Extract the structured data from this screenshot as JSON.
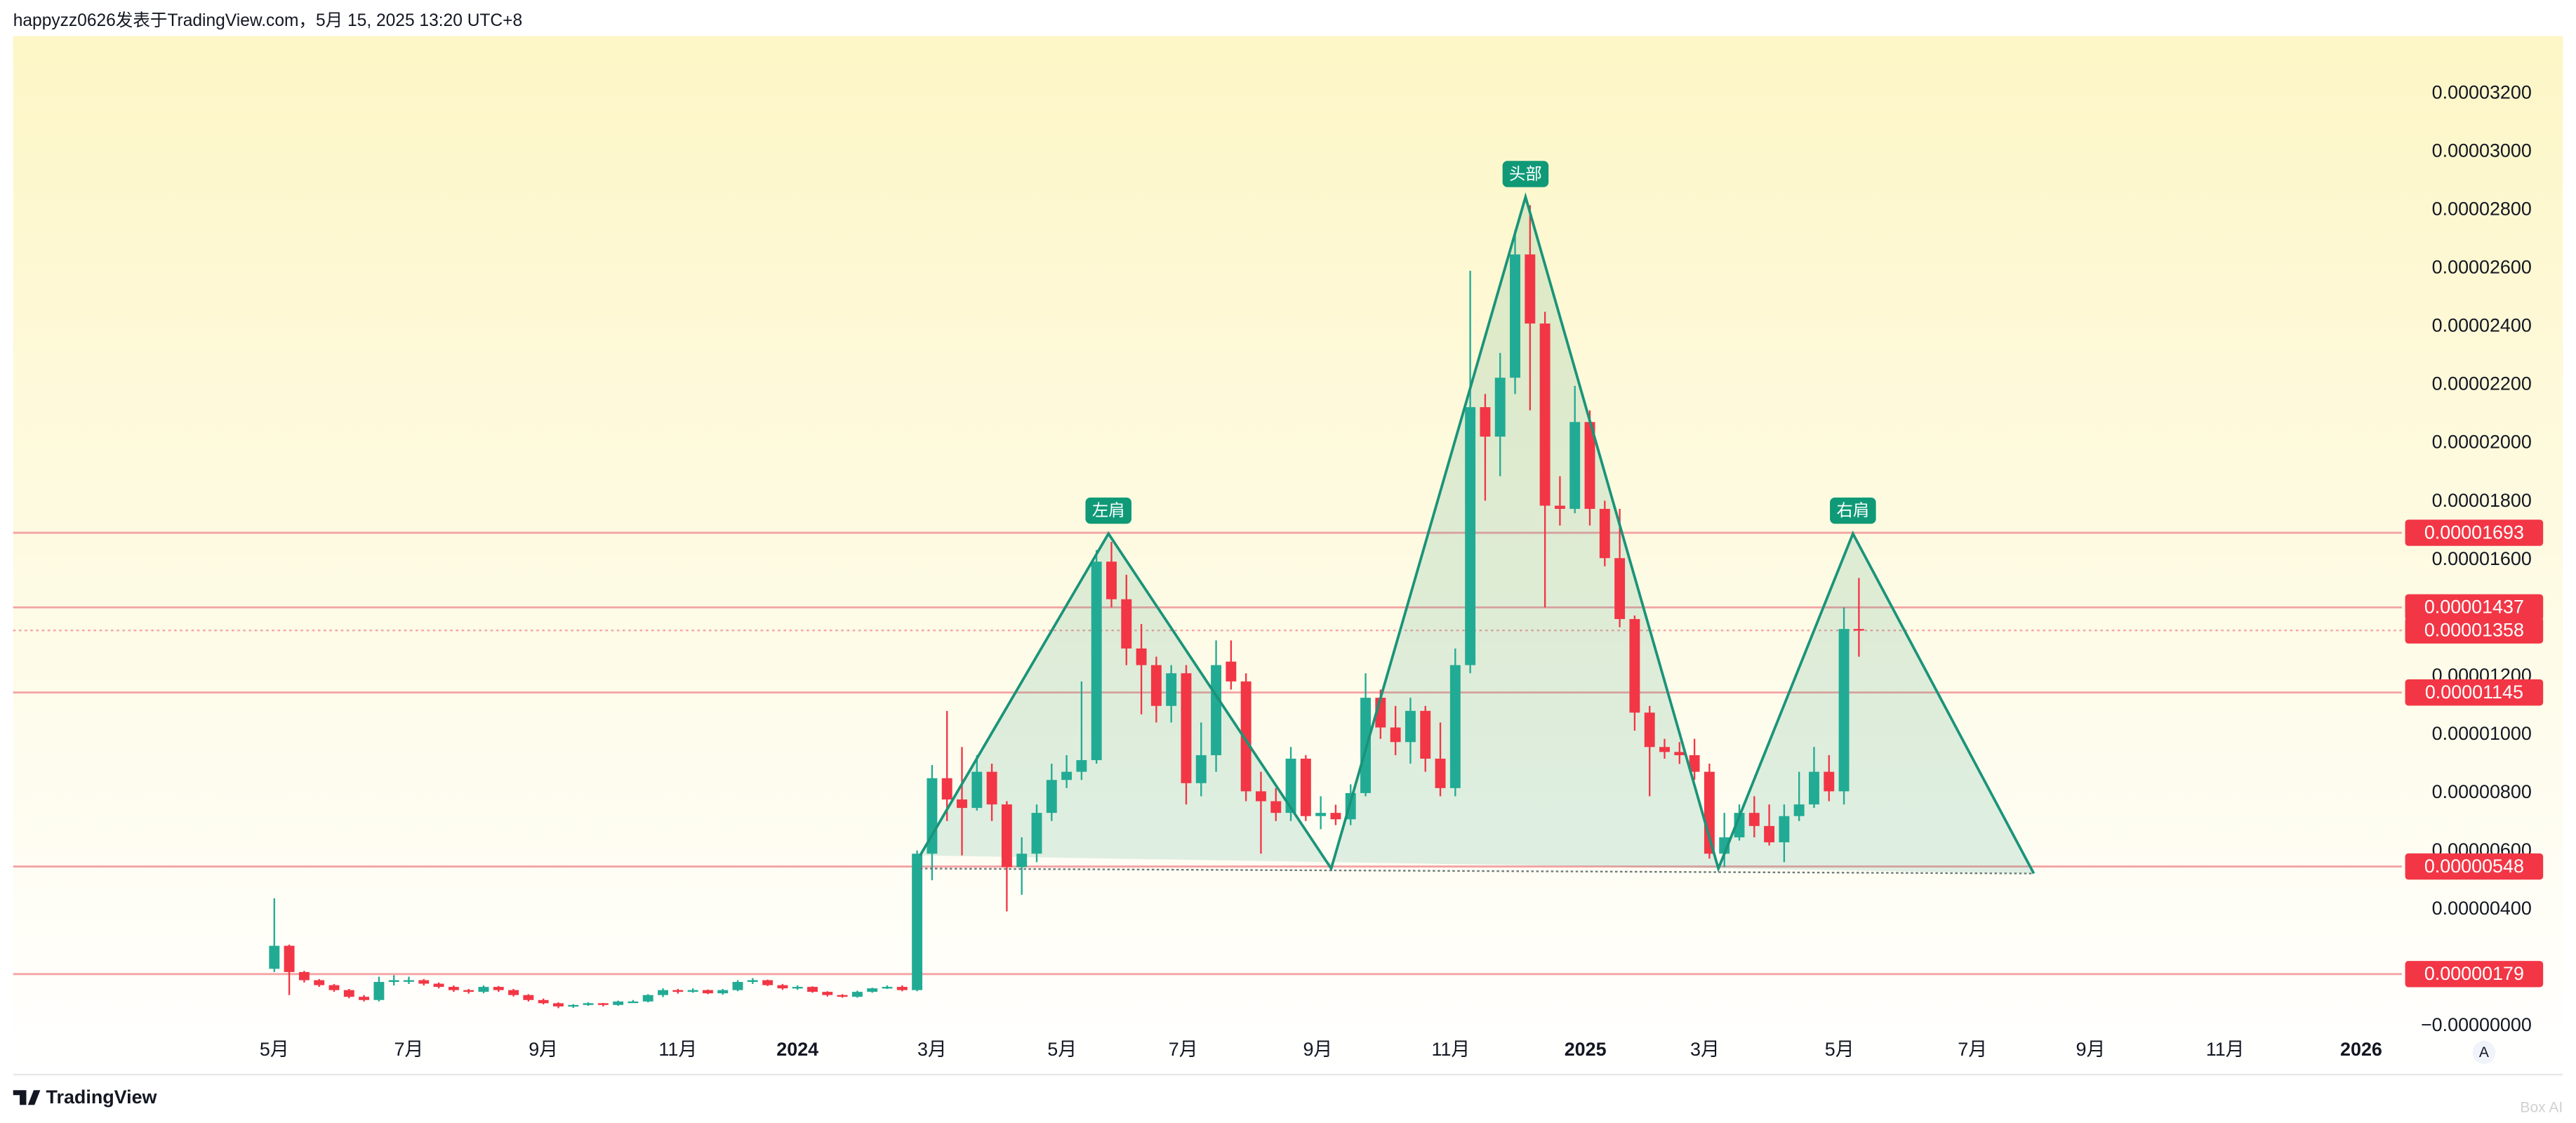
{
  "header": {
    "author_line": "happyzz0626发表于TradingView.com，5月 15, 2025 13:20 UTC+8"
  },
  "footer": {
    "logo": "TradingView",
    "scale_button": "A",
    "watermark": "Box AI"
  },
  "chart_data": {
    "type": "candlestick",
    "up_color": "#22ab94",
    "down_color": "#f23645",
    "level_color": "#f4a3a3",
    "tag_color": "#f23645",
    "pattern_color": "#1a9479",
    "x": [
      0,
      1,
      2,
      3,
      4,
      5,
      6,
      7,
      8,
      9,
      10,
      11,
      12,
      13,
      14,
      15,
      16,
      17,
      18,
      19,
      20,
      21,
      22,
      23,
      24,
      25,
      26,
      27,
      28,
      29,
      30,
      31,
      32,
      33,
      34,
      35,
      36,
      37,
      38,
      39,
      40,
      41,
      42,
      43,
      44,
      45,
      46,
      47,
      48,
      49,
      50,
      51,
      52,
      53,
      54,
      55,
      56,
      57,
      58,
      59,
      60,
      61,
      62,
      63,
      64,
      65,
      66,
      67,
      68,
      69,
      70,
      71,
      72,
      73,
      74,
      75,
      76,
      77,
      78,
      79,
      80,
      81,
      82,
      83,
      84,
      85,
      86,
      87,
      88,
      89,
      90,
      91,
      92,
      93,
      94,
      95,
      96,
      97,
      98,
      99,
      100,
      101,
      102,
      103,
      104,
      105,
      106
    ],
    "candles": [
      [
        1.97e-06,
        4.39e-06,
        1.86e-06,
        2.76e-06
      ],
      [
        2.76e-06,
        2.8e-06,
        1.07e-06,
        1.86e-06
      ],
      [
        1.86e-06,
        1.9e-06,
        1.5e-06,
        1.58e-06
      ],
      [
        1.58e-06,
        1.62e-06,
        1.35e-06,
        1.41e-06
      ],
      [
        1.41e-06,
        1.45e-06,
        1.18e-06,
        1.24e-06
      ],
      [
        1.24e-06,
        1.28e-06,
        9.6e-07,
        1.01e-06
      ],
      [
        1.01e-06,
        1.07e-06,
        8.5e-07,
        9e-07
      ],
      [
        9e-07,
        1.7e-06,
        8.5e-07,
        1.52e-06
      ],
      [
        1.52e-06,
        1.75e-06,
        1.4e-06,
        1.58e-06
      ],
      [
        1.58e-06,
        1.7e-06,
        1.45e-06,
        1.58e-06
      ],
      [
        1.58e-06,
        1.62e-06,
        1.4e-06,
        1.46e-06
      ],
      [
        1.46e-06,
        1.5e-06,
        1.3e-06,
        1.35e-06
      ],
      [
        1.35e-06,
        1.4e-06,
        1.18e-06,
        1.24e-06
      ],
      [
        1.24e-06,
        1.28e-06,
        1.12e-06,
        1.18e-06
      ],
      [
        1.18e-06,
        1.4e-06,
        1.13e-06,
        1.35e-06
      ],
      [
        1.35e-06,
        1.38e-06,
        1.18e-06,
        1.24e-06
      ],
      [
        1.24e-06,
        1.28e-06,
        1.02e-06,
        1.07e-06
      ],
      [
        1.07e-06,
        1.1e-06,
        8.5e-07,
        9e-07
      ],
      [
        9e-07,
        9.5e-07,
        7.5e-07,
        7.9e-07
      ],
      [
        7.9e-07,
        8.2e-07,
        6.2e-07,
        6.8e-07
      ],
      [
        6.8e-07,
        7.6e-07,
        6.3e-07,
        7.3e-07
      ],
      [
        7.3e-07,
        8.2e-07,
        7e-07,
        7.9e-07
      ],
      [
        7.9e-07,
        8e-07,
        6.8e-07,
        7.3e-07
      ],
      [
        7.3e-07,
        8.8e-07,
        7e-07,
        8.5e-07
      ],
      [
        8.5e-07,
        9e-07,
        8e-07,
        8.5e-07
      ],
      [
        8.5e-07,
        1.1e-06,
        8.2e-07,
        1.07e-06
      ],
      [
        1.07e-06,
        1.3e-06,
        1e-06,
        1.24e-06
      ],
      [
        1.24e-06,
        1.28e-06,
        1.12e-06,
        1.18e-06
      ],
      [
        1.18e-06,
        1.3e-06,
        1.15e-06,
        1.24e-06
      ],
      [
        1.24e-06,
        1.26e-06,
        1.1e-06,
        1.13e-06
      ],
      [
        1.13e-06,
        1.28e-06,
        1.08e-06,
        1.24e-06
      ],
      [
        1.24e-06,
        1.58e-06,
        1.2e-06,
        1.52e-06
      ],
      [
        1.52e-06,
        1.65e-06,
        1.45e-06,
        1.58e-06
      ],
      [
        1.58e-06,
        1.6e-06,
        1.38e-06,
        1.41e-06
      ],
      [
        1.41e-06,
        1.45e-06,
        1.25e-06,
        1.3e-06
      ],
      [
        1.3e-06,
        1.4e-06,
        1.25e-06,
        1.35e-06
      ],
      [
        1.35e-06,
        1.37e-06,
        1.15e-06,
        1.18e-06
      ],
      [
        1.18e-06,
        1.2e-06,
        1.02e-06,
        1.07e-06
      ],
      [
        1.07e-06,
        1.1e-06,
        9.8e-07,
        1.01e-06
      ],
      [
        1.01e-06,
        1.22e-06,
        9.8e-07,
        1.18e-06
      ],
      [
        1.18e-06,
        1.32e-06,
        1.15e-06,
        1.3e-06
      ],
      [
        1.3e-06,
        1.4e-06,
        1.28e-06,
        1.35e-06
      ],
      [
        1.35e-06,
        1.4e-06,
        1.2e-06,
        1.24e-06
      ],
      [
        1.24e-06,
        6.03e-06,
        1.2e-06,
        5.92e-06
      ],
      [
        5.92e-06,
        8.96e-06,
        5.01e-06,
        8.51e-06
      ],
      [
        8.51e-06,
        1.082e-05,
        7.04e-06,
        7.78e-06
      ],
      [
        7.78e-06,
        9.58e-06,
        5.86e-06,
        7.49e-06
      ],
      [
        7.49e-06,
        9.3e-06,
        7.4e-06,
        8.73e-06
      ],
      [
        8.73e-06,
        9.01e-06,
        7.04e-06,
        7.61e-06
      ],
      [
        7.61e-06,
        7.72e-06,
        3.94e-06,
        5.46e-06
      ],
      [
        5.46e-06,
        6.48e-06,
        4.51e-06,
        5.92e-06
      ],
      [
        5.92e-06,
        7.61e-06,
        5.63e-06,
        7.32e-06
      ],
      [
        7.32e-06,
        9.01e-06,
        7.04e-06,
        8.45e-06
      ],
      [
        8.45e-06,
        9.3e-06,
        8.17e-06,
        8.73e-06
      ],
      [
        8.73e-06,
        1.183e-05,
        8.45e-06,
        9.13e-06
      ],
      [
        9.13e-06,
        1.634e-05,
        9.01e-06,
        1.594e-05
      ],
      [
        1.594e-05,
        1.662e-05,
        1.437e-05,
        1.465e-05
      ],
      [
        1.465e-05,
        1.549e-05,
        1.239e-05,
        1.296e-05
      ],
      [
        1.296e-05,
        1.38e-05,
        1.07e-05,
        1.239e-05
      ],
      [
        1.239e-05,
        1.268e-05,
        1.042e-05,
        1.099e-05
      ],
      [
        1.099e-05,
        1.239e-05,
        1.042e-05,
        1.211e-05
      ],
      [
        1.211e-05,
        1.239e-05,
        7.61e-06,
        8.34e-06
      ],
      [
        8.34e-06,
        1.042e-05,
        7.89e-06,
        9.3e-06
      ],
      [
        9.3e-06,
        1.324e-05,
        8.73e-06,
        1.239e-05
      ],
      [
        1.251e-05,
        1.324e-05,
        1.155e-05,
        1.183e-05
      ],
      [
        1.183e-05,
        1.211e-05,
        7.72e-06,
        8.06e-06
      ],
      [
        8.06e-06,
        8.73e-06,
        5.92e-06,
        7.72e-06
      ],
      [
        7.72e-06,
        8.17e-06,
        7.04e-06,
        7.32e-06
      ],
      [
        7.32e-06,
        9.58e-06,
        7.04e-06,
        9.18e-06
      ],
      [
        9.18e-06,
        9.3e-06,
        7.04e-06,
        7.21e-06
      ],
      [
        7.21e-06,
        7.89e-06,
        6.76e-06,
        7.32e-06
      ],
      [
        7.32e-06,
        7.6e-06,
        6.9e-06,
        7.1e-06
      ],
      [
        7.1e-06,
        8.3e-06,
        6.9e-06,
        8e-06
      ],
      [
        8e-06,
        1.211e-05,
        7.89e-06,
        1.127e-05
      ],
      [
        1.127e-05,
        1.155e-05,
        9.86e-06,
        1.025e-05
      ],
      [
        1.025e-05,
        1.099e-05,
        9.3e-06,
        9.75e-06
      ],
      [
        9.75e-06,
        1.127e-05,
        9.01e-06,
        1.082e-05
      ],
      [
        1.082e-05,
        1.099e-05,
        8.73e-06,
        9.18e-06
      ],
      [
        9.18e-06,
        1.042e-05,
        7.89e-06,
        8.17e-06
      ],
      [
        8.17e-06,
        1.296e-05,
        7.89e-06,
        1.239e-05
      ],
      [
        1.239e-05,
        2.592e-05,
        1.211e-05,
        2.124e-05
      ],
      [
        2.124e-05,
        2.169e-05,
        1.803e-05,
        2.023e-05
      ],
      [
        2.023e-05,
        2.31e-05,
        1.887e-05,
        2.225e-05
      ],
      [
        2.225e-05,
        2.732e-05,
        2.169e-05,
        2.648e-05
      ],
      [
        2.648e-05,
        2.817e-05,
        2.113e-05,
        2.411e-05
      ],
      [
        2.411e-05,
        2.451e-05,
        1.437e-05,
        1.786e-05
      ],
      [
        1.786e-05,
        1.887e-05,
        1.718e-05,
        1.775e-05
      ],
      [
        1.775e-05,
        2.197e-05,
        1.76e-05,
        2.073e-05
      ],
      [
        2.073e-05,
        2.113e-05,
        1.718e-05,
        1.775e-05
      ],
      [
        1.775e-05,
        1.803e-05,
        1.578e-05,
        1.606e-05
      ],
      [
        1.606e-05,
        1.775e-05,
        1.369e-05,
        1.397e-05
      ],
      [
        1.397e-05,
        1.409e-05,
        1.014e-05,
        1.076e-05
      ],
      [
        1.076e-05,
        1.099e-05,
        7.89e-06,
        9.58e-06
      ],
      [
        9.58e-06,
        9.86e-06,
        9.18e-06,
        9.41e-06
      ],
      [
        9.41e-06,
        9.75e-06,
        9e-06,
        9.3e-06
      ],
      [
        9.3e-06,
        9.86e-06,
        8.45e-06,
        8.73e-06
      ],
      [
        8.73e-06,
        9.01e-06,
        5.75e-06,
        5.92e-06
      ],
      [
        5.92e-06,
        7.32e-06,
        5.46e-06,
        6.48e-06
      ],
      [
        6.48e-06,
        7.61e-06,
        6.37e-06,
        7.32e-06
      ],
      [
        7.32e-06,
        7.89e-06,
        6.48e-06,
        6.87e-06
      ],
      [
        6.87e-06,
        7.61e-06,
        6.2e-06,
        6.31e-06
      ],
      [
        6.31e-06,
        7.61e-06,
        5.63e-06,
        7.21e-06
      ],
      [
        7.21e-06,
        8.73e-06,
        7.04e-06,
        7.61e-06
      ],
      [
        7.61e-06,
        9.58e-06,
        7.49e-06,
        8.73e-06
      ],
      [
        8.73e-06,
        9.3e-06,
        7.72e-06,
        8.06e-06
      ],
      [
        8.06e-06,
        1.437e-05,
        7.61e-06,
        1.363e-05
      ],
      [
        1.363e-05,
        1.538e-05,
        1.268e-05,
        1.358e-05
      ]
    ],
    "xlim": [
      -17.47,
      142.1
    ],
    "xticks": [
      {
        "value": 0,
        "label": "5月"
      },
      {
        "value": 9,
        "label": "7月"
      },
      {
        "value": 18,
        "label": "9月"
      },
      {
        "value": 27,
        "label": "11月"
      },
      {
        "value": 35,
        "label": "2024"
      },
      {
        "value": 44,
        "label": "3月"
      },
      {
        "value": 52.7,
        "label": "5月"
      },
      {
        "value": 60.8,
        "label": "7月"
      },
      {
        "value": 69.8,
        "label": "9月"
      },
      {
        "value": 78.7,
        "label": "11月"
      },
      {
        "value": 87.7,
        "label": "2025"
      },
      {
        "value": 95.7,
        "label": "3月"
      },
      {
        "value": 104.7,
        "label": "5月"
      },
      {
        "value": 113.6,
        "label": "7月"
      },
      {
        "value": 121.5,
        "label": "9月"
      },
      {
        "value": 130.5,
        "label": "11月"
      },
      {
        "value": 139.6,
        "label": "2026"
      }
    ],
    "ylim": [
      -1.63e-06,
      3.397e-05
    ],
    "yticks": [
      {
        "value": 3.2e-05,
        "label": "0.00003200"
      },
      {
        "value": 3e-05,
        "label": "0.00003000"
      },
      {
        "value": 2.8e-05,
        "label": "0.00002800"
      },
      {
        "value": 2.6e-05,
        "label": "0.00002600"
      },
      {
        "value": 2.4e-05,
        "label": "0.00002400"
      },
      {
        "value": 2.2e-05,
        "label": "0.00002200"
      },
      {
        "value": 2e-05,
        "label": "0.00002000"
      },
      {
        "value": 1.8e-05,
        "label": "0.00001800"
      },
      {
        "value": 1.6e-05,
        "label": "0.00001600"
      },
      {
        "value": 1.2e-05,
        "label": "0.00001200"
      },
      {
        "value": 1e-05,
        "label": "0.00001000"
      },
      {
        "value": 8e-06,
        "label": "0.00000800"
      },
      {
        "value": 6e-06,
        "label": "0.00000600"
      },
      {
        "value": 4e-06,
        "label": "0.00000400"
      },
      {
        "value": 0,
        "label": "−0.00000000"
      }
    ],
    "levels": [
      {
        "value": 1.693e-05,
        "label": "0.00001693"
      },
      {
        "value": 1.437e-05,
        "label": "0.00001437"
      },
      {
        "value": 1.145e-05,
        "label": "0.00001145"
      },
      {
        "value": 5.48e-06,
        "label": "0.00000548"
      },
      {
        "value": 1.79e-06,
        "label": "0.00000179"
      }
    ],
    "current_price": {
      "value": 1.358e-05,
      "label": "0.00001358"
    },
    "pattern": {
      "x": [
        43.2,
        55.8,
        70.7,
        83.7,
        96.6,
        105.6,
        117.7
      ],
      "y": [
        5.86e-06,
        1.69e-05,
        5.41e-06,
        2.845e-05,
        5.41e-06,
        1.69e-05,
        5.24e-06
      ],
      "labels": [
        "左肩",
        "头部",
        "右肩"
      ]
    }
  }
}
